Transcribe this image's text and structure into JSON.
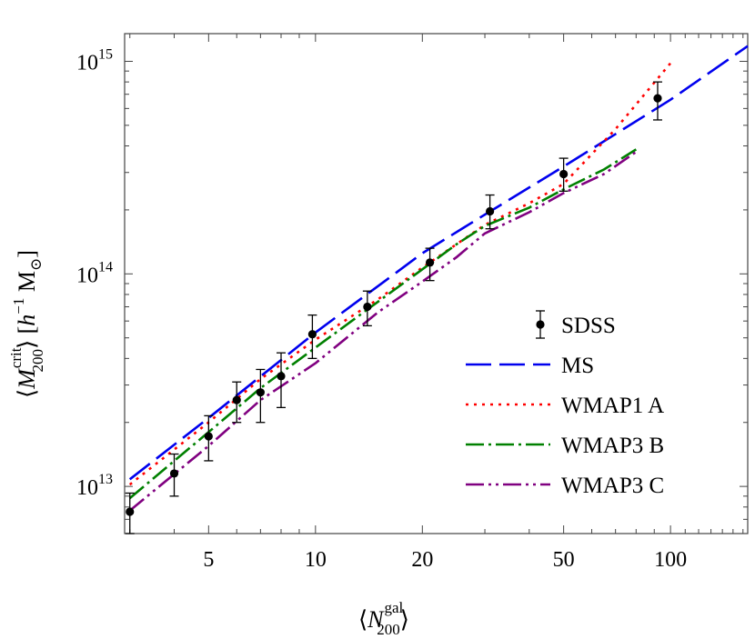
{
  "chart_data": {
    "type": "line",
    "scale": {
      "x": "log",
      "y": "log"
    },
    "xlim": [
      2.9,
      165
    ],
    "ylim": [
      6000000000000.0,
      1350000000000000.0
    ],
    "x_ticks": [
      {
        "value": 5,
        "label": "5"
      },
      {
        "value": 10,
        "label": "10"
      },
      {
        "value": 20,
        "label": "20"
      },
      {
        "value": 50,
        "label": "50"
      },
      {
        "value": 100,
        "label": "100"
      }
    ],
    "y_ticks": [
      {
        "value": 10000000000000.0,
        "base": "10",
        "exp": "13"
      },
      {
        "value": 100000000000000.0,
        "base": "10",
        "exp": "14"
      },
      {
        "value": 1000000000000000.0,
        "base": "10",
        "exp": "15"
      }
    ],
    "xlabel": {
      "left": "⟨",
      "main": "N",
      "sup": "gal",
      "sub": "200",
      "right": "⟩"
    },
    "ylabel": {
      "left": "⟨",
      "main": "M",
      "sup": "crit",
      "sub": "200",
      "right": "⟩ [",
      "h": "h",
      "hexp": "−1",
      "msun": " M",
      "sunsub": "⊙",
      "close": "]"
    },
    "legend_position": "lower-right",
    "series": [
      {
        "name": "SDSS",
        "kind": "points",
        "color": "#000000",
        "points": [
          {
            "x": 3.0,
            "y": 7600000000000.0,
            "ylo": 6000000000000.0,
            "yhi": 9300000000000.0
          },
          {
            "x": 4.0,
            "y": 11500000000000.0,
            "ylo": 9000000000000.0,
            "yhi": 14200000000000.0
          },
          {
            "x": 5.0,
            "y": 17200000000000.0,
            "ylo": 13200000000000.0,
            "yhi": 21500000000000.0
          },
          {
            "x": 6.0,
            "y": 25500000000000.0,
            "ylo": 20000000000000.0,
            "yhi": 31000000000000.0
          },
          {
            "x": 7.0,
            "y": 27700000000000.0,
            "ylo": 20000000000000.0,
            "yhi": 35500000000000.0
          },
          {
            "x": 8.0,
            "y": 33000000000000.0,
            "ylo": 23500000000000.0,
            "yhi": 42500000000000.0
          },
          {
            "x": 9.8,
            "y": 52000000000000.0,
            "ylo": 40000000000000.0,
            "yhi": 64000000000000.0
          },
          {
            "x": 14.0,
            "y": 70000000000000.0,
            "ylo": 57000000000000.0,
            "yhi": 83000000000000.0
          },
          {
            "x": 21.0,
            "y": 113000000000000.0,
            "ylo": 93000000000000.0,
            "yhi": 132000000000000.0
          },
          {
            "x": 31.0,
            "y": 197000000000000.0,
            "ylo": 163000000000000.0,
            "yhi": 235000000000000.0
          },
          {
            "x": 50.0,
            "y": 295000000000000.0,
            "ylo": 245000000000000.0,
            "yhi": 350000000000000.0
          },
          {
            "x": 92.0,
            "y": 670000000000000.0,
            "ylo": 530000000000000.0,
            "yhi": 800000000000000.0
          }
        ]
      },
      {
        "name": "MS",
        "kind": "line",
        "color": "#0000ee",
        "dash": "28 9",
        "x": [
          3,
          5,
          10,
          20,
          30,
          50,
          100,
          165
        ],
        "y": [
          10800000000000.0,
          21000000000000.0,
          53000000000000.0,
          125000000000000.0,
          190000000000000.0,
          320000000000000.0,
          660000000000000.0,
          1180000000000000.0
        ]
      },
      {
        "name": "WMAP1 A",
        "kind": "line",
        "color": "#ff0000",
        "dash": "3 6",
        "x": [
          3,
          5,
          7,
          10,
          15,
          20,
          30,
          40,
          50,
          70,
          100
        ],
        "y": [
          10200000000000.0,
          20000000000000.0,
          32000000000000.0,
          49000000000000.0,
          76000000000000.0,
          107000000000000.0,
          170000000000000.0,
          215000000000000.0,
          265000000000000.0,
          480000000000000.0,
          980000000000000.0
        ]
      },
      {
        "name": "WMAP3 B",
        "kind": "line",
        "color": "#008000",
        "dash": "20 5 3 5",
        "x": [
          3,
          5,
          7,
          10,
          15,
          20,
          25,
          30,
          40,
          50,
          65,
          80
        ],
        "y": [
          8800000000000.0,
          18000000000000.0,
          29000000000000.0,
          45000000000000.0,
          74000000000000.0,
          105000000000000.0,
          138000000000000.0,
          168000000000000.0,
          205000000000000.0,
          250000000000000.0,
          310000000000000.0,
          385000000000000.0
        ]
      },
      {
        "name": "WMAP3 C",
        "kind": "line",
        "color": "#800080",
        "dash": "20 5 3 5 3 5",
        "x": [
          3,
          5,
          7,
          10,
          15,
          20,
          25,
          30,
          40,
          50,
          65,
          80
        ],
        "y": [
          7700000000000.0,
          15500000000000.0,
          25500000000000.0,
          38000000000000.0,
          66000000000000.0,
          92000000000000.0,
          120000000000000.0,
          155000000000000.0,
          195000000000000.0,
          240000000000000.0,
          295000000000000.0,
          375000000000000.0
        ]
      }
    ]
  }
}
